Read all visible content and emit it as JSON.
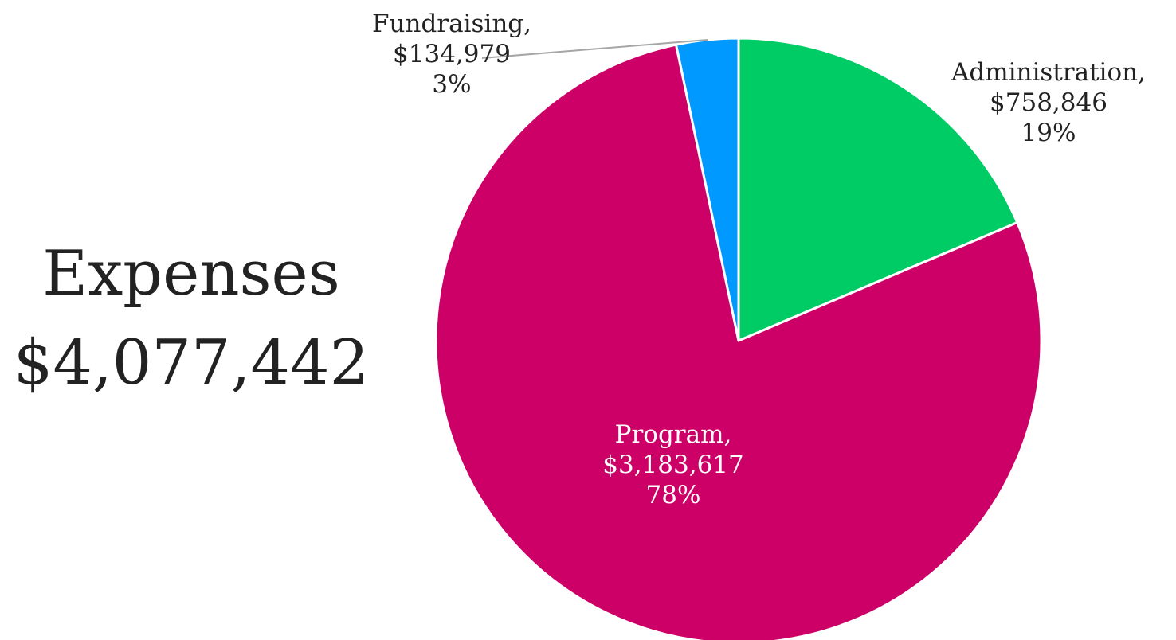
{
  "chart_data": {
    "type": "pie",
    "title": "Expenses",
    "total": "$4,077,442",
    "slices": [
      {
        "name": "Administration",
        "value": 758846,
        "value_label": "$758,846",
        "percent_label": "19%",
        "color": "#00cc66"
      },
      {
        "name": "Program",
        "value": 3183617,
        "value_label": "$3,183,617",
        "percent_label": "78%",
        "color": "#cc0066"
      },
      {
        "name": "Fundraising",
        "value": 134979,
        "value_label": "$134,979",
        "percent_label": "3%",
        "color": "#0099ff"
      }
    ],
    "start_angle": "12 o'clock",
    "direction": "clockwise"
  }
}
